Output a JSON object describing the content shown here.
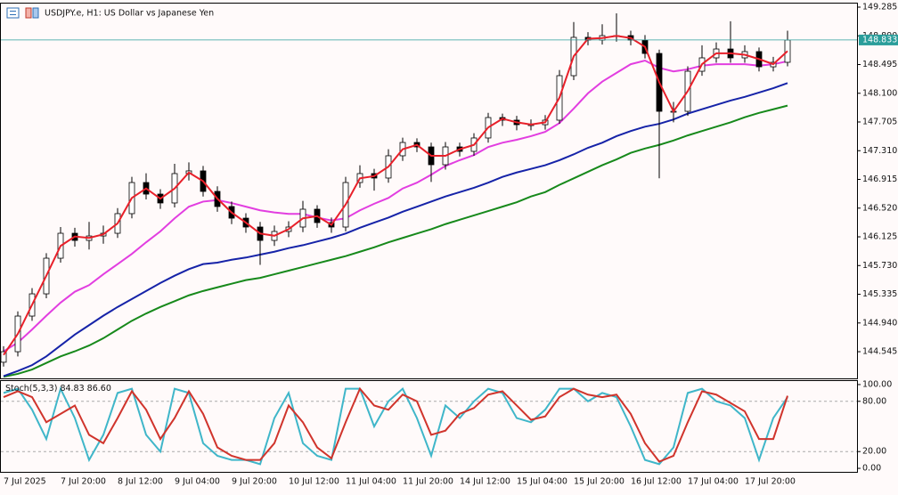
{
  "chart_data": [
    {
      "type": "candlestick",
      "title": "USDJPY.e, H1:  US Dollar vs Japanese Yen",
      "x": [
        "7 Jul 2025",
        null,
        null,
        null,
        "7 Jul 20:00",
        null,
        null,
        null,
        "8 Jul 12:00",
        null,
        null,
        null,
        "9 Jul 04:00",
        null,
        null,
        null,
        "9 Jul 20:00",
        null,
        null,
        null,
        "10 Jul 12:00",
        null,
        null,
        null,
        "11 Jul 04:00",
        null,
        null,
        null,
        "11 Jul 20:00",
        null,
        null,
        null,
        "14 Jul 12:00",
        null,
        null,
        null,
        "15 Jul 04:00",
        null,
        null,
        null,
        "15 Jul 20:00",
        null,
        null,
        null,
        "16 Jul 12:00",
        null,
        null,
        null,
        "17 Jul 04:00",
        null,
        null,
        null,
        "17 Jul 20:00",
        null,
        null,
        null
      ],
      "open": [
        144.4,
        144.545,
        145.035,
        145.341,
        145.831,
        146.174,
        146.076,
        146.137,
        146.174,
        146.444,
        146.872,
        146.713,
        146.591,
        146.995,
        147.032,
        146.75,
        146.542,
        146.382,
        146.26,
        146.076,
        146.199,
        146.26,
        146.505,
        146.321,
        146.26,
        146.872,
        146.995,
        146.934,
        147.24,
        147.423,
        147.362,
        147.117,
        147.362,
        147.301,
        147.485,
        147.766,
        147.73,
        147.668,
        147.668,
        147.73,
        148.342,
        148.869,
        148.832,
        148.893,
        148.893,
        148.832,
        148.648,
        147.852,
        147.852,
        148.403,
        148.587,
        148.709,
        148.587,
        148.673,
        148.464,
        148.526
      ],
      "high": [
        144.62,
        145.1,
        145.42,
        145.9,
        146.26,
        146.25,
        146.33,
        146.28,
        146.52,
        146.95,
        147.0,
        146.78,
        147.13,
        147.15,
        147.1,
        146.82,
        146.61,
        146.45,
        146.33,
        146.28,
        146.34,
        146.62,
        146.56,
        146.39,
        146.95,
        147.11,
        147.06,
        147.33,
        147.49,
        147.48,
        147.42,
        147.43,
        147.42,
        147.55,
        147.83,
        147.82,
        147.79,
        147.74,
        147.8,
        148.42,
        149.08,
        148.94,
        149.05,
        149.2,
        148.96,
        148.9,
        148.7,
        147.98,
        148.47,
        148.76,
        148.8,
        149.09,
        148.76,
        148.73,
        148.6,
        148.96
      ],
      "low": [
        144.34,
        144.48,
        144.97,
        145.28,
        145.77,
        145.99,
        145.95,
        146.03,
        146.11,
        146.38,
        146.64,
        146.51,
        146.53,
        146.9,
        146.68,
        146.47,
        146.3,
        146.18,
        145.74,
        146.0,
        146.12,
        146.19,
        146.25,
        146.18,
        146.2,
        146.8,
        146.76,
        146.87,
        147.17,
        147.29,
        146.88,
        147.05,
        147.23,
        147.24,
        147.42,
        147.65,
        147.59,
        147.59,
        147.6,
        147.68,
        148.28,
        148.76,
        148.77,
        148.81,
        148.76,
        148.58,
        146.93,
        147.7,
        147.79,
        148.34,
        148.52,
        148.52,
        148.52,
        148.4,
        148.4,
        148.47
      ],
      "close": [
        144.545,
        145.035,
        145.341,
        145.831,
        146.174,
        146.076,
        146.137,
        146.174,
        146.444,
        146.872,
        146.713,
        146.591,
        146.995,
        147.032,
        146.75,
        146.542,
        146.382,
        146.26,
        146.076,
        146.199,
        146.26,
        146.505,
        146.321,
        146.26,
        146.872,
        146.995,
        146.934,
        147.24,
        147.423,
        147.362,
        147.117,
        147.362,
        147.301,
        147.485,
        147.766,
        147.73,
        147.668,
        147.668,
        147.73,
        148.342,
        148.869,
        148.832,
        148.893,
        148.893,
        148.832,
        148.648,
        147.852,
        147.852,
        148.403,
        148.587,
        148.709,
        148.587,
        148.673,
        148.464,
        148.526,
        148.833
      ],
      "up_color": "#ffffff",
      "down_color": "#000000",
      "series": [
        {
          "color": "#17891b",
          "values": [
            144.2,
            144.24,
            144.3,
            144.39,
            144.48,
            144.55,
            144.63,
            144.73,
            144.85,
            144.97,
            145.07,
            145.16,
            145.24,
            145.32,
            145.38,
            145.43,
            145.48,
            145.53,
            145.56,
            145.61,
            145.66,
            145.71,
            145.76,
            145.81,
            145.86,
            145.92,
            145.98,
            146.05,
            146.11,
            146.17,
            146.23,
            146.3,
            146.36,
            146.42,
            146.48,
            146.54,
            146.6,
            146.68,
            146.74,
            146.84,
            146.93,
            147.02,
            147.11,
            147.19,
            147.28,
            147.34,
            147.39,
            147.45,
            147.52,
            147.58,
            147.64,
            147.7,
            147.77,
            147.83,
            147.88,
            147.93
          ]
        },
        {
          "color": "#1623a8",
          "values": [
            144.21,
            144.28,
            144.36,
            144.48,
            144.63,
            144.78,
            144.91,
            145.04,
            145.16,
            145.27,
            145.38,
            145.49,
            145.59,
            145.68,
            145.75,
            145.77,
            145.81,
            145.84,
            145.88,
            145.92,
            145.97,
            146.01,
            146.06,
            146.11,
            146.17,
            146.25,
            146.32,
            146.39,
            146.47,
            146.54,
            146.61,
            146.68,
            146.74,
            146.8,
            146.87,
            146.95,
            147.01,
            147.06,
            147.11,
            147.18,
            147.26,
            147.35,
            147.42,
            147.51,
            147.58,
            147.64,
            147.68,
            147.74,
            147.82,
            147.88,
            147.94,
            148.0,
            148.05,
            148.11,
            148.17,
            148.24
          ]
        },
        {
          "color": "#e23ee0",
          "values": [
            144.55,
            144.67,
            144.85,
            145.04,
            145.22,
            145.37,
            145.46,
            145.61,
            145.75,
            145.89,
            146.05,
            146.2,
            146.38,
            146.54,
            146.61,
            146.63,
            146.59,
            146.54,
            146.49,
            146.46,
            146.44,
            146.44,
            146.39,
            146.35,
            146.38,
            146.49,
            146.58,
            146.66,
            146.79,
            146.87,
            146.98,
            147.1,
            147.18,
            147.25,
            147.36,
            147.42,
            147.46,
            147.51,
            147.57,
            147.69,
            147.89,
            148.1,
            148.26,
            148.38,
            148.5,
            148.55,
            148.45,
            148.4,
            148.43,
            148.48,
            148.5,
            148.5,
            148.5,
            148.48,
            148.5,
            148.54
          ]
        },
        {
          "color": "#e8202a",
          "values": [
            144.5,
            144.79,
            145.19,
            145.59,
            146.0,
            146.13,
            146.11,
            146.16,
            146.31,
            146.66,
            146.79,
            146.65,
            146.79,
            147.01,
            146.89,
            146.65,
            146.46,
            146.32,
            146.17,
            146.14,
            146.23,
            146.38,
            146.41,
            146.29,
            146.57,
            146.93,
            146.96,
            147.09,
            147.33,
            147.39,
            147.24,
            147.24,
            147.33,
            147.39,
            147.63,
            147.75,
            147.7,
            147.67,
            147.7,
            148.04,
            148.61,
            148.85,
            148.86,
            148.89,
            148.86,
            148.74,
            148.25,
            147.85,
            148.13,
            148.5,
            148.65,
            148.65,
            148.63,
            148.57,
            148.5,
            148.68
          ]
        }
      ],
      "ylim": [
        144.178,
        149.334
      ],
      "yticks": [
        149.285,
        {
          "value": 148.89,
          "label": "148.890"
        },
        148.495,
        {
          "value": 148.1,
          "label": "148.100"
        },
        147.705,
        {
          "value": 147.31,
          "label": "147.310"
        },
        146.915,
        {
          "value": 146.52,
          "label": "146.520"
        },
        146.125,
        {
          "value": 145.73,
          "label": "145.730"
        },
        145.335,
        {
          "value": 144.94,
          "label": "144.940"
        },
        144.545
      ],
      "last_price": 148.833,
      "last_price_color": "#2a9d9a"
    },
    {
      "type": "line",
      "title": "Stoch(5,3,3)",
      "series": [
        {
          "color": "#3fb6c9",
          "values": [
            90,
            95,
            70,
            35,
            95,
            60,
            10,
            40,
            90,
            95,
            40,
            20,
            95,
            90,
            30,
            15,
            10,
            10,
            5,
            60,
            90,
            30,
            15,
            10,
            95,
            95,
            50,
            80,
            95,
            60,
            15,
            75,
            60,
            80,
            95,
            90,
            60,
            55,
            70,
            95,
            95,
            80,
            90,
            85,
            50,
            10,
            5,
            25,
            90,
            95,
            80,
            75,
            60,
            10,
            60,
            84.83
          ]
        },
        {
          "color": "#d0342c",
          "values": [
            85,
            92,
            85,
            55,
            65,
            75,
            40,
            30,
            60,
            92,
            70,
            35,
            60,
            92,
            65,
            25,
            15,
            10,
            10,
            30,
            75,
            55,
            25,
            12,
            55,
            95,
            75,
            70,
            88,
            80,
            40,
            45,
            65,
            72,
            88,
            92,
            75,
            58,
            62,
            85,
            95,
            88,
            85,
            88,
            65,
            30,
            8,
            15,
            55,
            92,
            88,
            78,
            68,
            35,
            35,
            86.6
          ],
          "last_value_label": "86.60"
        }
      ],
      "ylim": [
        -4.2,
        104.2
      ],
      "yticks": [
        {
          "value": 100,
          "label": "100.00"
        },
        {
          "value": 80,
          "label": "80.00"
        },
        {
          "value": 20,
          "label": "20.00"
        },
        {
          "value": 0,
          "label": "0.00"
        }
      ],
      "levels": [
        80,
        20
      ]
    }
  ]
}
